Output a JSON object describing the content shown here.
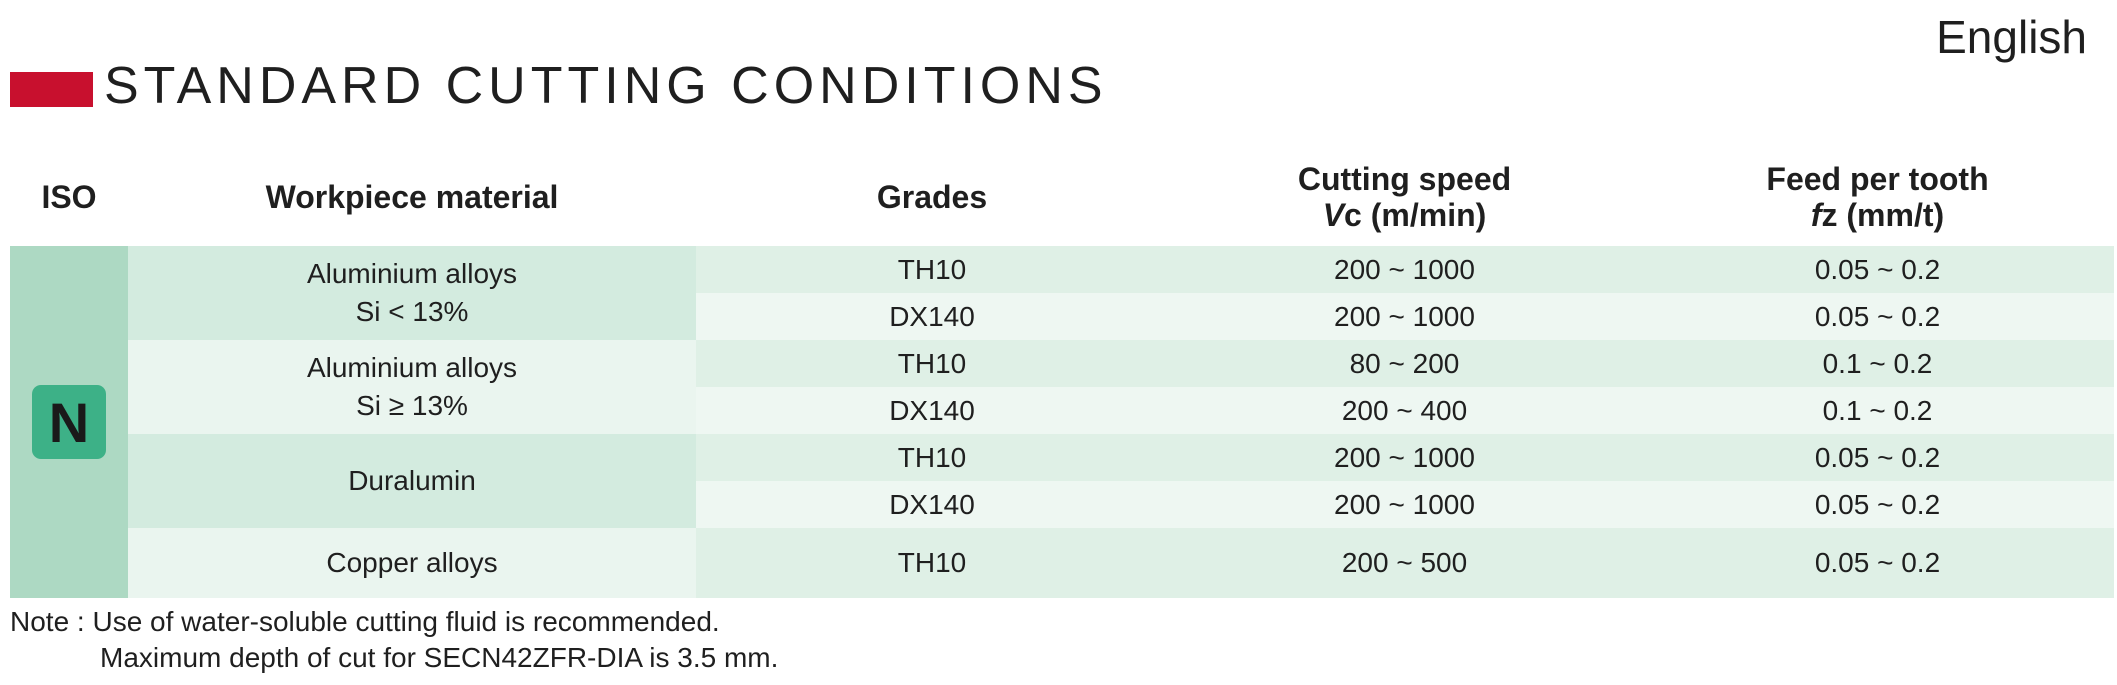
{
  "language": "English",
  "title": "STANDARD CUTTING CONDITIONS",
  "headers": {
    "iso": "ISO",
    "material": "Workpiece material",
    "grades": "Grades",
    "speed_line1": "Cutting speed",
    "speed_sym": "V",
    "speed_rest": "c (m/min)",
    "feed_line1": "Feed per tooth",
    "feed_sym": "f",
    "feed_rest": "z (mm/t)"
  },
  "iso_class": "N",
  "materials": [
    {
      "line1": "Aluminium alloys",
      "line2": "Si < 13%"
    },
    {
      "line1": "Aluminium alloys",
      "line2": "Si ≥ 13%"
    },
    {
      "line1": "Duralumin"
    },
    {
      "line1": "Copper alloys"
    }
  ],
  "rows": [
    {
      "grade": "TH10",
      "speed": "200 ~ 1000",
      "feed": "0.05 ~ 0.2"
    },
    {
      "grade": "DX140",
      "speed": "200 ~ 1000",
      "feed": "0.05 ~ 0.2"
    },
    {
      "grade": "TH10",
      "speed": "80 ~ 200",
      "feed": "0.1 ~ 0.2"
    },
    {
      "grade": "DX140",
      "speed": "200 ~ 400",
      "feed": "0.1 ~ 0.2"
    },
    {
      "grade": "TH10",
      "speed": "200 ~ 1000",
      "feed": "0.05 ~ 0.2"
    },
    {
      "grade": "DX140",
      "speed": "200 ~ 1000",
      "feed": "0.05 ~ 0.2"
    },
    {
      "grade": "TH10",
      "speed": "200 ~ 500",
      "feed": "0.05 ~ 0.2"
    }
  ],
  "note": {
    "line1": "Note : Use of water-soluble cutting fluid is recommended.",
    "line2": "Maximum depth of cut for SECN42ZFR-DIA is 3.5 mm."
  }
}
